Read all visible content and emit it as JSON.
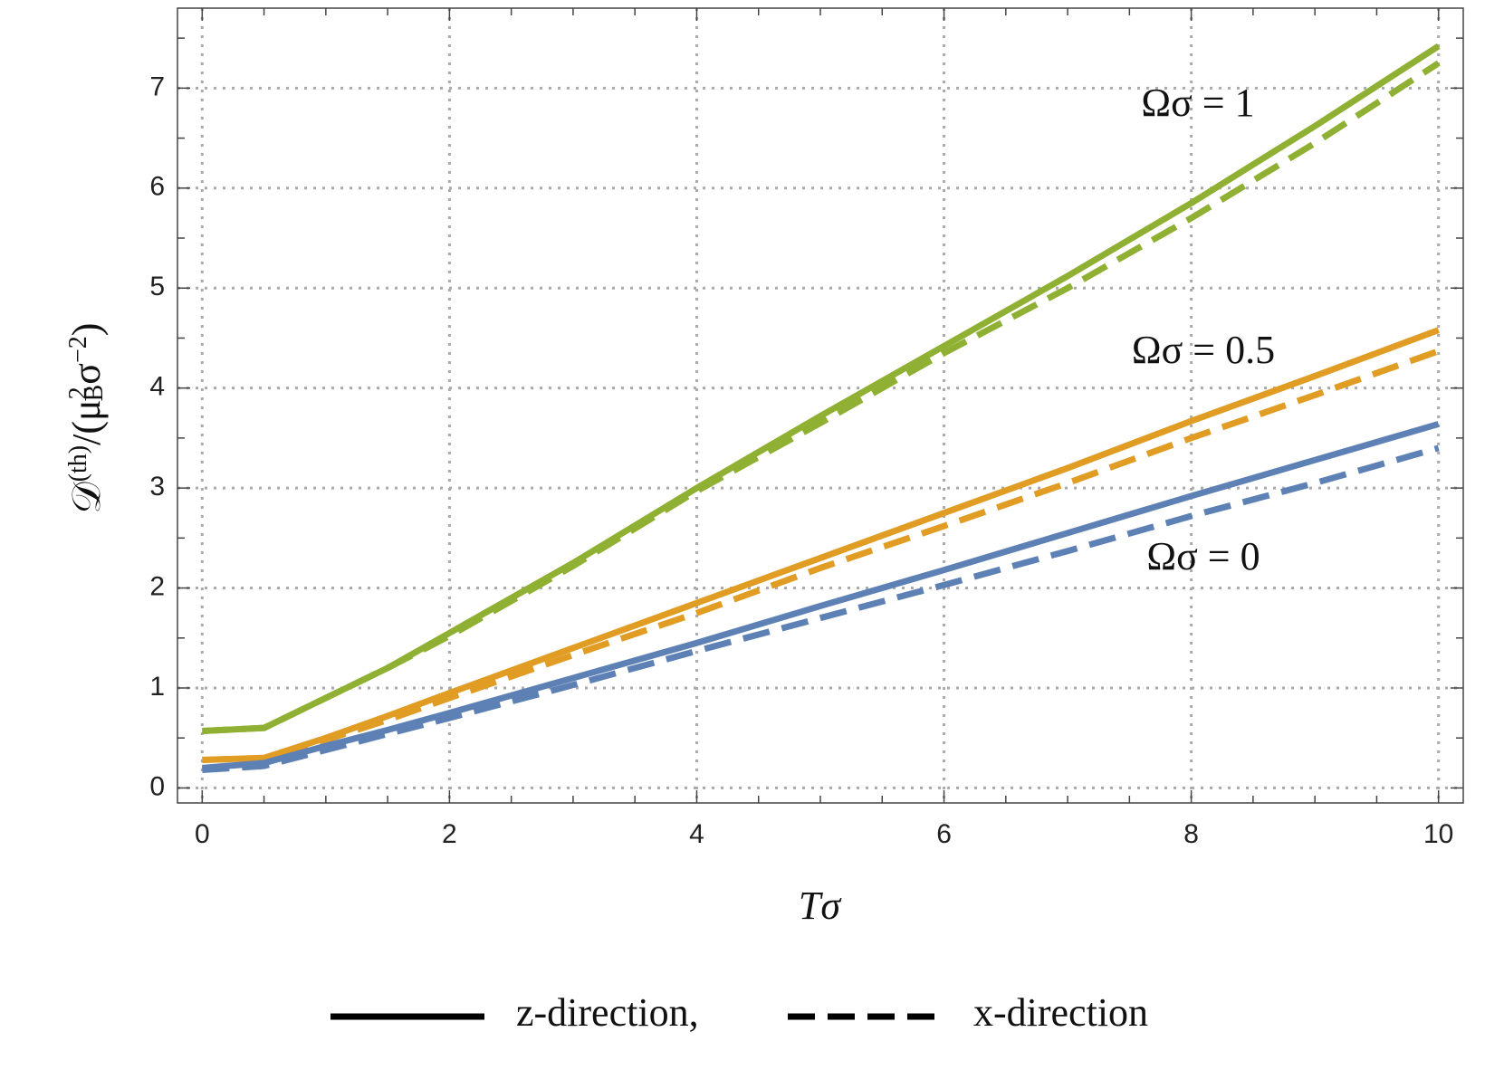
{
  "chart_data": {
    "type": "line",
    "x": [
      0,
      0.5,
      1,
      1.5,
      2,
      3,
      4,
      5,
      6,
      7,
      8,
      9,
      10
    ],
    "series": [
      {
        "color": "#8fb032",
        "dash": "solid",
        "values": [
          0.57,
          0.6,
          0.9,
          1.2,
          1.55,
          2.25,
          3.0,
          3.72,
          4.42,
          5.12,
          5.85,
          6.62,
          7.42
        ]
      },
      {
        "color": "#8fb032",
        "dash": "dashed",
        "values": [
          0.57,
          0.6,
          0.9,
          1.2,
          1.52,
          2.22,
          2.97,
          3.65,
          4.35,
          5.0,
          5.7,
          6.45,
          7.25
        ]
      },
      {
        "color": "#e19c24",
        "dash": "solid",
        "values": [
          0.28,
          0.3,
          0.5,
          0.72,
          0.95,
          1.4,
          1.85,
          2.3,
          2.75,
          3.2,
          3.67,
          4.12,
          4.58
        ]
      },
      {
        "color": "#e19c24",
        "dash": "dashed",
        "values": [
          0.28,
          0.3,
          0.48,
          0.68,
          0.9,
          1.33,
          1.75,
          2.2,
          2.62,
          3.05,
          3.5,
          3.93,
          4.37
        ]
      },
      {
        "color": "#5e81b5",
        "dash": "solid",
        "values": [
          0.2,
          0.25,
          0.42,
          0.58,
          0.75,
          1.1,
          1.45,
          1.82,
          2.18,
          2.55,
          2.92,
          3.28,
          3.64
        ]
      },
      {
        "color": "#5e81b5",
        "dash": "dashed",
        "values": [
          0.18,
          0.22,
          0.38,
          0.54,
          0.7,
          1.03,
          1.37,
          1.7,
          2.03,
          2.37,
          2.72,
          3.05,
          3.4
        ]
      }
    ],
    "annotations": [
      "Ωσ = 1",
      "Ωσ = 0.5",
      "Ωσ = 0"
    ],
    "legend": [
      {
        "label": "z-direction,",
        "dash": "solid"
      },
      {
        "label": "x-direction",
        "dash": "dashed"
      }
    ],
    "xlabel": "Tσ",
    "ylabel": [
      {
        "text": "𝒟",
        "shift": "none"
      },
      {
        "text": "(th)",
        "shift": "sup"
      },
      {
        "text": "/(μ",
        "shift": "none"
      },
      {
        "text": "2",
        "shift": "sup"
      },
      {
        "text": "B",
        "shift": "sub"
      },
      {
        "text": "σ",
        "shift": "none"
      },
      {
        "text": "−2",
        "shift": "sup"
      },
      {
        "text": ")",
        "shift": "none"
      }
    ],
    "xlim": [
      -0.2,
      10.2
    ],
    "ylim": [
      -0.15,
      7.8
    ],
    "xticks": [
      0,
      2,
      4,
      6,
      8,
      10
    ],
    "yticks": [
      0,
      1,
      2,
      3,
      4,
      5,
      6,
      7
    ],
    "xminorticks": [
      0.5,
      1,
      1.5,
      2.5,
      3,
      3.5,
      4.5,
      5,
      5.5,
      6.5,
      7,
      7.5,
      8.5,
      9,
      9.5
    ],
    "yminorticks": [
      0.5,
      1.5,
      2.5,
      3.5,
      4.5,
      5.5,
      6.5,
      7.5
    ],
    "grid": true
  }
}
